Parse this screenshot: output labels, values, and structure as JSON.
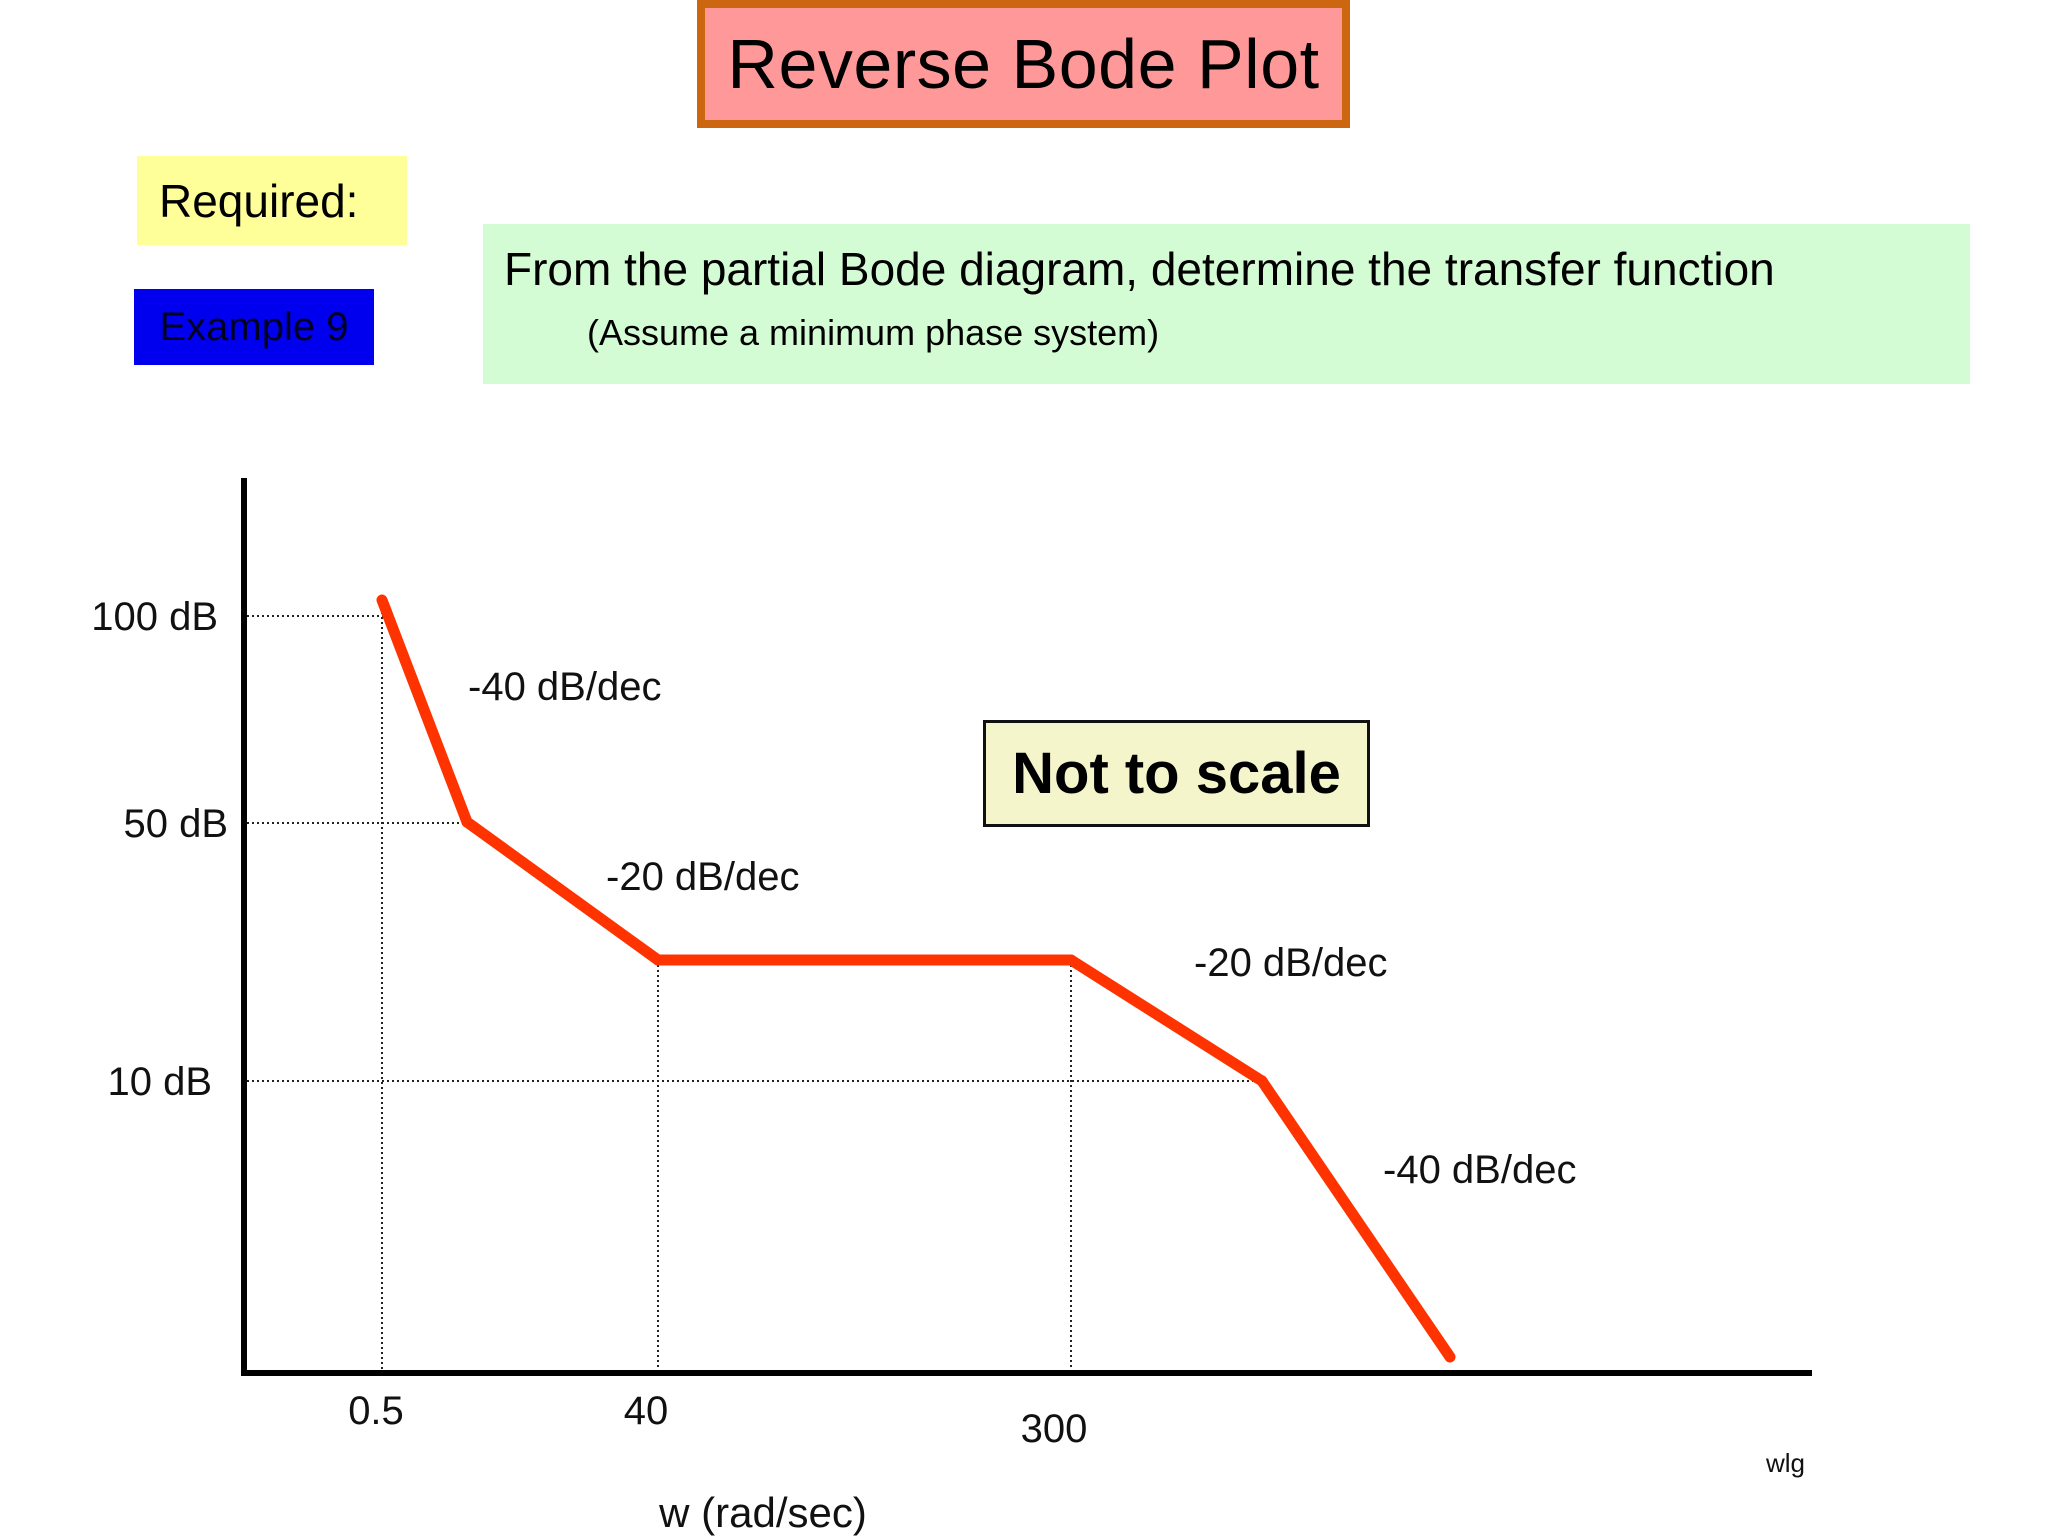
{
  "header": {
    "title": "Reverse Bode Plot"
  },
  "required_label": "Required:",
  "example_label": "Example 9",
  "task": {
    "line": "From the partial Bode diagram, determine the transfer function",
    "note": "(Assume a minimum phase system)"
  },
  "not_to_scale": "Not to scale",
  "credit": "wlg",
  "colors": {
    "magnitude_line": "#ff3300",
    "title_fill": "#ff9999",
    "title_border": "#cc6611",
    "required_fill": "#ffff99",
    "example_fill": "#0000ee",
    "task_fill": "#d4fcd4",
    "note_fill": "#f5f5cc"
  },
  "chart_data": {
    "type": "line",
    "title": "",
    "xlabel": "w (rad/sec)",
    "ylabel": "",
    "x_ticks": [
      "0.5",
      "40",
      "300"
    ],
    "y_ticks": [
      "100 dB",
      "50 dB",
      "10 dB"
    ],
    "grid": "dotted guides at labeled ticks",
    "series": [
      {
        "points": [
          {
            "x": "0.5",
            "y": 100
          },
          {
            "x": null,
            "y": 50
          },
          {
            "x": "40",
            "y": null
          },
          {
            "x": "300",
            "y": null
          },
          {
            "x": null,
            "y": 10
          },
          {
            "x": null,
            "y": null
          }
        ]
      }
    ],
    "annotations": [
      {
        "text": "-40 dB/dec",
        "segment": 1
      },
      {
        "text": "-20 dB/dec",
        "segment": 2
      },
      {
        "text": "-20 dB/dec",
        "segment": 4
      },
      {
        "text": "-40 dB/dec",
        "segment": 5
      }
    ]
  }
}
